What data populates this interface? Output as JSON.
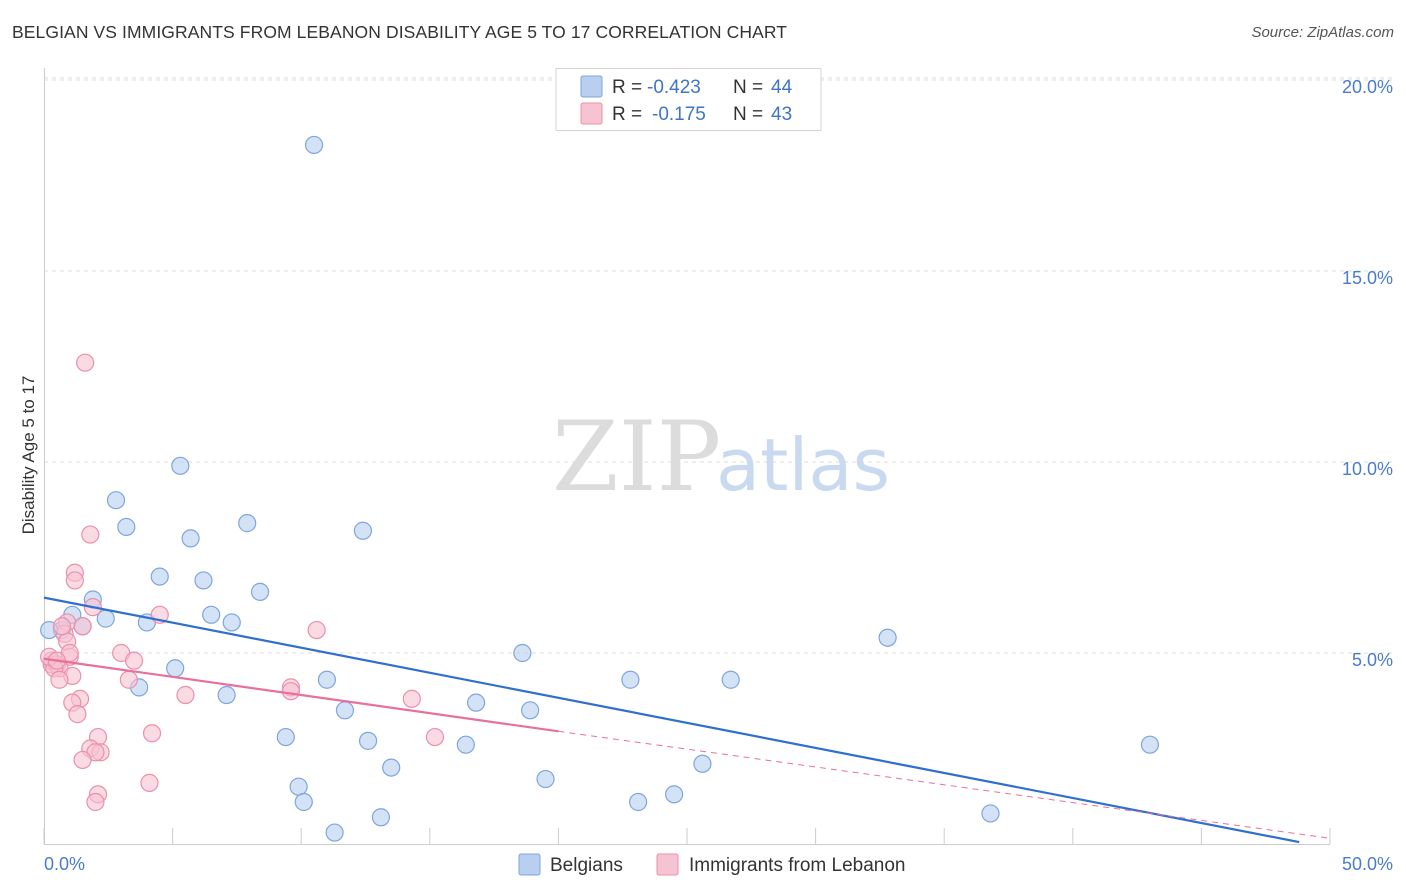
{
  "title": "BELGIAN VS IMMIGRANTS FROM LEBANON DISABILITY AGE 5 TO 17 CORRELATION CHART",
  "source": "Source: ZipAtlas.com",
  "watermark": {
    "zip": "ZIP",
    "atlas": "atlas"
  },
  "colors": {
    "blue_fill": "#b8cff0",
    "blue_stroke": "#7ea6de",
    "blue_line": "#2f6fd0",
    "pink_fill": "#f6c3d2",
    "pink_stroke": "#ec8fab",
    "pink_line": "#e8709a"
  },
  "legend": {
    "rows": [
      {
        "r_label": "R = ",
        "r_value": "-0.423",
        "n_label": "N = ",
        "n_value": "44"
      },
      {
        "r_label": "R = ",
        "r_value": "-0.175",
        "n_label": "N = ",
        "n_value": "43"
      }
    ]
  },
  "chart_data": {
    "type": "scatter",
    "title": "BELGIAN VS IMMIGRANTS FROM LEBANON DISABILITY AGE 5 TO 17 CORRELATION CHART",
    "xlabel": "",
    "ylabel": "Disability Age 5 to 17",
    "xlim": [
      0,
      50
    ],
    "ylim": [
      0,
      20
    ],
    "x_tick_labels": [
      "0.0%",
      "50.0%"
    ],
    "y_ticks": [
      5,
      10,
      15,
      20
    ],
    "y_tick_labels": [
      "5.0%",
      "10.0%",
      "15.0%",
      "20.0%"
    ],
    "grid": true,
    "series": [
      {
        "name": "Belgians",
        "color": "#b8cff0",
        "r": -0.423,
        "n": 44,
        "trend": {
          "x": [
            0,
            48.8
          ],
          "y": [
            6.45,
            0.05
          ]
        },
        "points": [
          [
            10.5,
            18.3
          ],
          [
            5.3,
            9.9
          ],
          [
            2.8,
            9.0
          ],
          [
            3.2,
            8.3
          ],
          [
            7.9,
            8.4
          ],
          [
            5.7,
            8.0
          ],
          [
            12.4,
            8.2
          ],
          [
            4.5,
            7.0
          ],
          [
            6.2,
            6.9
          ],
          [
            8.4,
            6.6
          ],
          [
            1.9,
            6.4
          ],
          [
            1.1,
            6.0
          ],
          [
            2.4,
            5.9
          ],
          [
            6.5,
            6.0
          ],
          [
            4.0,
            5.8
          ],
          [
            7.3,
            5.8
          ],
          [
            1.5,
            5.7
          ],
          [
            0.7,
            5.6
          ],
          [
            0.2,
            5.6
          ],
          [
            32.8,
            5.4
          ],
          [
            18.6,
            5.0
          ],
          [
            5.1,
            4.6
          ],
          [
            11.0,
            4.3
          ],
          [
            22.8,
            4.3
          ],
          [
            26.7,
            4.3
          ],
          [
            3.7,
            4.1
          ],
          [
            7.1,
            3.9
          ],
          [
            16.8,
            3.7
          ],
          [
            11.7,
            3.5
          ],
          [
            18.9,
            3.5
          ],
          [
            9.4,
            2.8
          ],
          [
            12.6,
            2.7
          ],
          [
            16.4,
            2.6
          ],
          [
            43.0,
            2.6
          ],
          [
            25.6,
            2.1
          ],
          [
            13.5,
            2.0
          ],
          [
            19.5,
            1.7
          ],
          [
            9.9,
            1.5
          ],
          [
            10.1,
            1.1
          ],
          [
            23.1,
            1.1
          ],
          [
            24.5,
            1.3
          ],
          [
            13.1,
            0.7
          ],
          [
            36.8,
            0.8
          ],
          [
            11.3,
            0.3
          ]
        ]
      },
      {
        "name": "Immigrants from Lebanon",
        "color": "#f6c3d2",
        "r": -0.175,
        "n": 43,
        "trend": {
          "x": [
            0,
            20.0
          ],
          "y": [
            4.85,
            2.95
          ]
        },
        "trend_dashed": {
          "x": [
            20.0,
            50.0
          ],
          "y": [
            2.95,
            0.15
          ]
        },
        "points": [
          [
            1.6,
            12.6
          ],
          [
            1.8,
            8.1
          ],
          [
            1.2,
            7.1
          ],
          [
            1.2,
            6.9
          ],
          [
            1.9,
            6.2
          ],
          [
            4.5,
            6.0
          ],
          [
            0.9,
            5.8
          ],
          [
            1.5,
            5.7
          ],
          [
            10.6,
            5.6
          ],
          [
            0.8,
            5.5
          ],
          [
            0.9,
            5.3
          ],
          [
            3.0,
            5.0
          ],
          [
            1.0,
            4.9
          ],
          [
            0.3,
            4.8
          ],
          [
            3.5,
            4.8
          ],
          [
            0.3,
            4.7
          ],
          [
            0.5,
            4.7
          ],
          [
            0.6,
            4.6
          ],
          [
            0.4,
            4.6
          ],
          [
            1.1,
            4.4
          ],
          [
            0.6,
            4.3
          ],
          [
            3.3,
            4.3
          ],
          [
            9.6,
            4.1
          ],
          [
            9.6,
            4.0
          ],
          [
            5.5,
            3.9
          ],
          [
            1.4,
            3.8
          ],
          [
            14.3,
            3.8
          ],
          [
            1.1,
            3.7
          ],
          [
            1.3,
            3.4
          ],
          [
            4.2,
            2.9
          ],
          [
            15.2,
            2.8
          ],
          [
            2.1,
            2.8
          ],
          [
            1.8,
            2.5
          ],
          [
            2.2,
            2.4
          ],
          [
            2.0,
            2.4
          ],
          [
            1.5,
            2.2
          ],
          [
            4.1,
            1.6
          ],
          [
            2.1,
            1.3
          ],
          [
            2.0,
            1.1
          ],
          [
            0.2,
            4.9
          ],
          [
            0.7,
            5.7
          ],
          [
            1.0,
            5.0
          ],
          [
            0.5,
            4.8
          ]
        ]
      }
    ]
  },
  "bottom_legend": [
    {
      "label": "Belgians"
    },
    {
      "label": "Immigrants from Lebanon"
    }
  ]
}
